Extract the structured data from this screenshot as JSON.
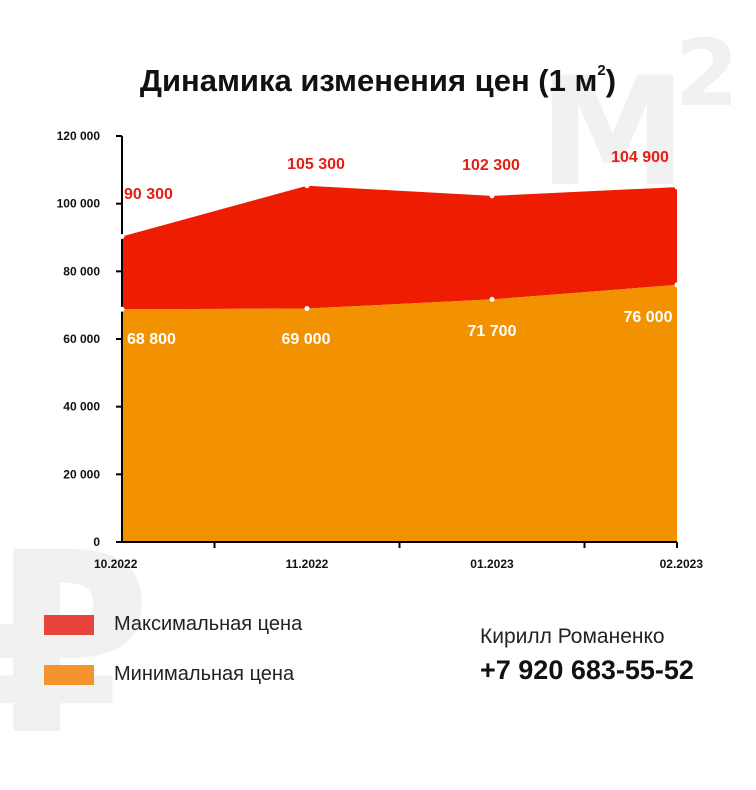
{
  "watermark": {
    "letter": "М",
    "superscript": "2",
    "currency": "₽"
  },
  "title": {
    "main": "Динамика изменения цен (1 м",
    "sup": "2",
    "end": ")"
  },
  "chart_data": {
    "type": "area",
    "categories": [
      "10.2022",
      "11.2022",
      "01.2023",
      "02.2023"
    ],
    "ylim": [
      0,
      120000
    ],
    "yticks": [
      "0",
      "20 000",
      "40 000",
      "60 000",
      "80 000",
      "100 000",
      "120 000"
    ],
    "series": [
      {
        "name": "Максимальная цена",
        "values": [
          90300,
          105300,
          102300,
          104900
        ],
        "labels": [
          "90 300",
          "105 300",
          "102 300",
          "104 900"
        ],
        "color": "#ee1c00"
      },
      {
        "name": "Минимальная цена",
        "values": [
          68800,
          69000,
          71700,
          76000
        ],
        "labels": [
          "68 800",
          "69 000",
          "71 700",
          "76 000"
        ],
        "color": "#f39200"
      }
    ],
    "label_colors": {
      "max": "#e41e12",
      "min": "#ffffff"
    },
    "legend_position": "bottom-left",
    "grid": false
  },
  "legend": [
    {
      "label": "Максимальная цена",
      "color": "#e8433b"
    },
    {
      "label": "Минимальная цена",
      "color": "#f4942e"
    }
  ],
  "contact": {
    "name": "Кирилл Романенко",
    "phone": "+7 920 683-55-52"
  }
}
